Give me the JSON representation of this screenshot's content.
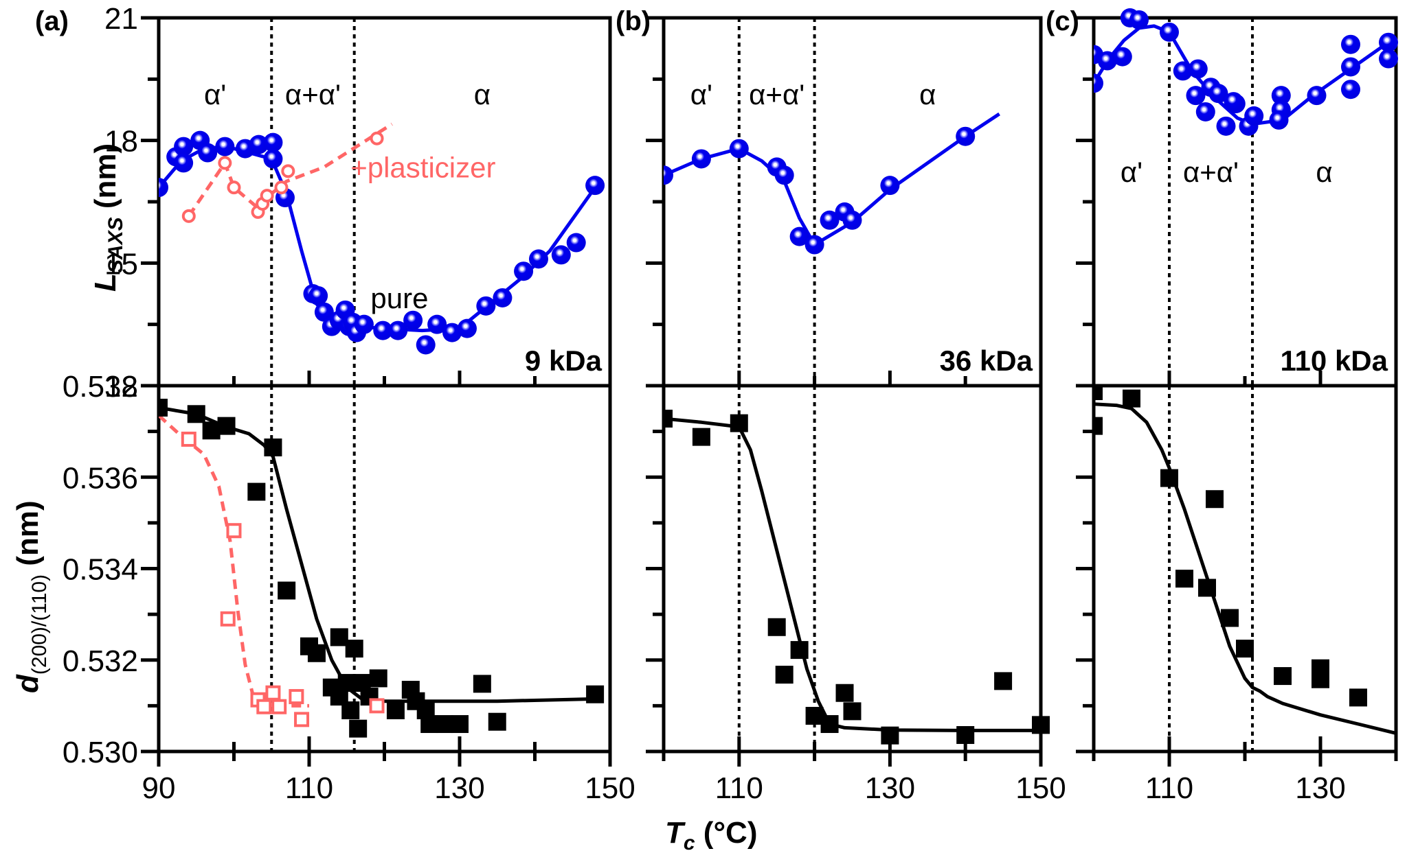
{
  "colors": {
    "pure_saxs": "#0000ee",
    "pure_saxs_highlight": "#c8c8ff",
    "plasticizer": "#ff6666",
    "waxs": "#000000",
    "boundary": "#000000"
  },
  "chart_data": [
    {
      "id": "a-top",
      "type": "scatter",
      "panel_label": "(a)",
      "annotation": "9 kDa",
      "ylabel": "L_SAXS (nm)",
      "xlim": [
        90,
        150
      ],
      "ylim": [
        12,
        21
      ],
      "yticks": [
        12,
        15,
        18,
        21
      ],
      "xticks": [
        90,
        110,
        130,
        150
      ],
      "boundaries": [
        105,
        116
      ],
      "phase_labels": [
        "α'",
        "α+α'",
        "α"
      ],
      "series": [
        {
          "name": "pure",
          "marker": "sphere",
          "x": [
            90,
            92.3,
            93.3,
            93.3,
            95.5,
            96.5,
            98.8,
            101.5,
            103.3,
            105.2,
            105.2,
            106.8,
            110.5,
            111.2,
            112,
            113,
            114,
            114.8,
            115.3,
            115.8,
            116.3,
            117.3,
            119.8,
            121.8,
            123.8,
            125.5,
            127,
            129,
            131,
            133.5,
            135.7,
            138.5,
            140.5,
            143.5,
            145.5,
            148
          ],
          "y": [
            16.85,
            17.6,
            17.85,
            17.45,
            18.0,
            17.7,
            17.85,
            17.8,
            17.9,
            17.95,
            17.55,
            16.6,
            14.25,
            14.2,
            13.8,
            13.45,
            13.6,
            13.85,
            13.45,
            13.55,
            13.3,
            13.5,
            13.35,
            13.35,
            13.6,
            13.0,
            13.5,
            13.3,
            13.4,
            13.95,
            14.15,
            14.8,
            15.1,
            15.2,
            15.5,
            16.9
          ]
        },
        {
          "name": "+plasticizer",
          "marker": "open-circle",
          "x": [
            94,
            98.8,
            100,
            103.2,
            103.8,
            104.4,
            106.3,
            107.2,
            119
          ],
          "y": [
            16.15,
            17.45,
            16.85,
            16.25,
            16.45,
            16.65,
            16.85,
            17.25,
            18.05
          ]
        }
      ],
      "fit_lines": [
        {
          "name": "pure-fit",
          "style": "solid",
          "x": [
            90,
            93,
            96,
            99,
            102,
            105,
            107,
            109,
            111,
            113,
            116,
            120,
            125,
            130,
            134,
            138,
            142,
            148
          ],
          "y": [
            16.85,
            17.5,
            17.8,
            17.85,
            17.7,
            17.55,
            16.7,
            15.3,
            14.0,
            13.6,
            13.45,
            13.4,
            13.35,
            13.4,
            14.0,
            14.6,
            15.3,
            16.85
          ]
        },
        {
          "name": "plasticizer-fit",
          "style": "dashed",
          "x": [
            94,
            98.8,
            100,
            103.5,
            105,
            107,
            112,
            121
          ],
          "y": [
            16.15,
            17.45,
            16.85,
            16.3,
            16.7,
            17.0,
            17.35,
            18.4
          ]
        }
      ],
      "annotations": [
        "pure",
        "+plasticizer"
      ]
    },
    {
      "id": "a-bottom",
      "type": "scatter",
      "ylabel": "d(200)/(110) (nm)",
      "xlim": [
        90,
        150
      ],
      "ylim": [
        0.53,
        0.538
      ],
      "yticks": [
        0.53,
        0.532,
        0.534,
        0.536,
        0.538
      ],
      "xticks": [
        90,
        110,
        130,
        150
      ],
      "boundaries": [
        105,
        116
      ],
      "series": [
        {
          "name": "pure",
          "marker": "filled-square",
          "x": [
            90,
            95,
            97,
            99,
            103,
            105.2,
            107,
            110,
            111,
            114,
            115,
            116,
            113,
            114,
            115.5,
            116.5,
            117,
            118,
            119.2,
            121.5,
            123.5,
            124.2,
            125.5,
            126,
            128,
            130,
            133,
            135,
            148
          ],
          "y": [
            0.53752,
            0.53738,
            0.53702,
            0.53712,
            0.53568,
            0.53665,
            0.53352,
            0.5323,
            0.53215,
            0.5325,
            0.5315,
            0.53225,
            0.5314,
            0.5312,
            0.5309,
            0.5305,
            0.5315,
            0.5312,
            0.5316,
            0.5309,
            0.53135,
            0.5311,
            0.5309,
            0.5306,
            0.5306,
            0.5306,
            0.53148,
            0.53065,
            0.53125
          ]
        },
        {
          "name": "+plasticizer",
          "marker": "open-square",
          "x": [
            94,
            99.2,
            100,
            103.2,
            104,
            105.2,
            106,
            108.3,
            109,
            119
          ],
          "y": [
            0.53683,
            0.5329,
            0.53483,
            0.53113,
            0.53098,
            0.53128,
            0.53098,
            0.5312,
            0.5307,
            0.531
          ]
        }
      ],
      "fit_lines": [
        {
          "name": "pure-fit",
          "style": "solid",
          "x": [
            90,
            95,
            99,
            102,
            104,
            105.2,
            107,
            109,
            111,
            113,
            115,
            117,
            120,
            125,
            135,
            148
          ],
          "y": [
            0.53752,
            0.53738,
            0.5371,
            0.53695,
            0.5367,
            0.53645,
            0.5353,
            0.5341,
            0.5329,
            0.532,
            0.5314,
            0.53115,
            0.5311,
            0.5311,
            0.5311,
            0.53115
          ]
        },
        {
          "name": "plasticizer-fit",
          "style": "dashed",
          "x": [
            90,
            93,
            96,
            98,
            99.5,
            100.5,
            101.5,
            102.5,
            104,
            106,
            110
          ],
          "y": [
            0.53735,
            0.5369,
            0.5365,
            0.5358,
            0.5346,
            0.5331,
            0.5319,
            0.53125,
            0.5311,
            0.531,
            0.531
          ]
        }
      ]
    },
    {
      "id": "b-top",
      "type": "scatter",
      "panel_label": "(b)",
      "annotation": "36 kDa",
      "xlim": [
        100,
        150
      ],
      "ylim": [
        12,
        21
      ],
      "yticks": [
        12,
        15,
        18,
        21
      ],
      "xticks": [
        110,
        130,
        150
      ],
      "boundaries": [
        110,
        120
      ],
      "phase_labels": [
        "α'",
        "α+α'",
        "α"
      ],
      "series": [
        {
          "name": "pure",
          "marker": "sphere",
          "x": [
            100,
            105,
            110,
            115,
            116,
            118,
            120,
            122,
            124,
            125,
            130,
            140
          ],
          "y": [
            17.15,
            17.55,
            17.8,
            17.35,
            17.15,
            15.65,
            15.45,
            16.05,
            16.25,
            16.05,
            16.9,
            18.1
          ]
        }
      ],
      "fit_lines": [
        {
          "name": "pure-fit",
          "style": "solid",
          "x": [
            100,
            105,
            110,
            113,
            116,
            118,
            120,
            125,
            130,
            140,
            144.5
          ],
          "y": [
            17.15,
            17.55,
            17.8,
            17.5,
            17.0,
            16.1,
            15.45,
            16.0,
            16.8,
            18.1,
            18.65
          ]
        }
      ]
    },
    {
      "id": "b-bottom",
      "type": "scatter",
      "xlim": [
        100,
        150
      ],
      "ylim": [
        0.53,
        0.538
      ],
      "xticks": [
        110,
        130,
        150
      ],
      "boundaries": [
        110,
        120
      ],
      "series": [
        {
          "name": "pure",
          "marker": "filled-square",
          "x": [
            100,
            105,
            110,
            115,
            116,
            118,
            120,
            122,
            124,
            125,
            130,
            140,
            145,
            150
          ],
          "y": [
            0.53728,
            0.53688,
            0.53718,
            0.53272,
            0.53168,
            0.53222,
            0.53078,
            0.5306,
            0.53128,
            0.53088,
            0.53035,
            0.53036,
            0.53154,
            0.53058
          ]
        }
      ],
      "fit_lines": [
        {
          "name": "pure-fit",
          "style": "solid",
          "x": [
            100,
            105,
            110,
            111.5,
            113,
            115,
            117,
            119,
            120.5,
            122,
            124,
            130,
            140,
            150
          ],
          "y": [
            0.53728,
            0.5372,
            0.5371,
            0.5366,
            0.5357,
            0.5344,
            0.5331,
            0.5318,
            0.5311,
            0.5306,
            0.53052,
            0.53047,
            0.53046,
            0.53046
          ]
        }
      ]
    },
    {
      "id": "c-top",
      "type": "scatter",
      "panel_label": "(c)",
      "annotation": "110 kDa",
      "xlim": [
        100,
        140
      ],
      "ylim": [
        12,
        21
      ],
      "yticks": [
        12,
        15,
        18,
        21
      ],
      "xticks": [
        110,
        130
      ],
      "boundaries": [
        110,
        121
      ],
      "phase_labels": [
        "α'",
        "α+α'",
        "α"
      ],
      "series": [
        {
          "name": "pure",
          "marker": "sphere",
          "x": [
            100,
            100,
            101.8,
            103.8,
            104.8,
            106,
            110,
            111.8,
            113.8,
            113.5,
            115.5,
            114.8,
            116.5,
            117.5,
            118.8,
            118.5,
            120.5,
            121.2,
            124.8,
            124.8,
            124.5,
            129.5,
            134,
            134,
            134,
            139,
            139
          ],
          "y": [
            20.1,
            19.4,
            19.95,
            20.05,
            21.0,
            20.95,
            20.65,
            19.7,
            19.75,
            19.1,
            19.3,
            18.7,
            19.15,
            18.35,
            18.9,
            18.95,
            18.35,
            18.6,
            19.1,
            18.75,
            18.5,
            19.1,
            20.35,
            19.8,
            19.25,
            20.4,
            20.0
          ]
        }
      ],
      "fit_lines": [
        {
          "name": "pure-fit",
          "style": "solid",
          "x": [
            100,
            102,
            104,
            106,
            108,
            110,
            113,
            116,
            119,
            121,
            125,
            129,
            134,
            139
          ],
          "y": [
            19.4,
            20.0,
            20.45,
            20.75,
            20.8,
            20.65,
            19.7,
            19.05,
            18.55,
            18.4,
            18.5,
            19.1,
            19.75,
            20.4
          ]
        }
      ]
    },
    {
      "id": "c-bottom",
      "type": "scatter",
      "xlim": [
        100,
        140
      ],
      "ylim": [
        0.53,
        0.538
      ],
      "xticks": [
        110,
        130
      ],
      "boundaries": [
        110,
        121
      ],
      "series": [
        {
          "name": "pure",
          "marker": "filled-square",
          "x": [
            100,
            100,
            105,
            110,
            116,
            112,
            115,
            118,
            120,
            125,
            130,
            130,
            135
          ],
          "y": [
            0.53788,
            0.53712,
            0.53772,
            0.53598,
            0.53552,
            0.53378,
            0.53358,
            0.53292,
            0.53225,
            0.53165,
            0.53182,
            0.53158,
            0.53118
          ]
        }
      ],
      "fit_lines": [
        {
          "name": "pure-fit",
          "style": "solid",
          "x": [
            100,
            103,
            105,
            107,
            109,
            110,
            112,
            114,
            116,
            118,
            120,
            121,
            122,
            123,
            125,
            130,
            135,
            140
          ],
          "y": [
            0.5376,
            0.53757,
            0.5375,
            0.5372,
            0.5366,
            0.5362,
            0.5353,
            0.5343,
            0.5333,
            0.5323,
            0.5316,
            0.5314,
            0.53132,
            0.5312,
            0.53105,
            0.5308,
            0.5306,
            0.5304
          ]
        }
      ]
    }
  ],
  "xlabel": "Tc (°C)",
  "xlabel_main": "T",
  "xlabel_sub": "c",
  "xlabel_unit": " (°C)",
  "ylabel_top_main": "L",
  "ylabel_top_sub": "SAXS",
  "ylabel_top_unit": " (nm)",
  "ylabel_bottom_main": "d",
  "ylabel_bottom_sub": "(200)/(110)",
  "ylabel_bottom_unit": " (nm)",
  "labels": {
    "pure": "pure",
    "plasticizer": "+plasticizer"
  }
}
